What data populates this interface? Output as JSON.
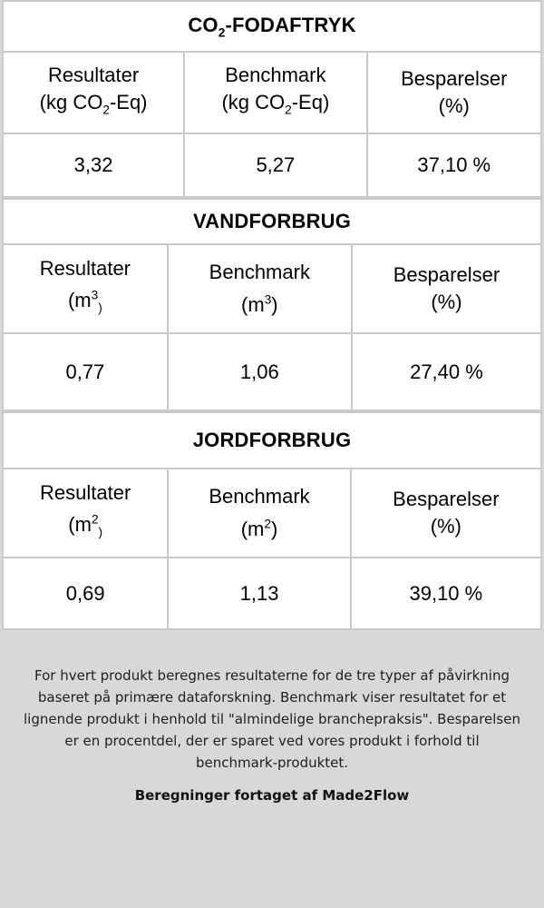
{
  "colors": {
    "page_background": "#d8d8d8",
    "table_background": "#ffffff",
    "table_border": "#c9c9c9"
  },
  "tables": [
    {
      "id": "co2-footprint",
      "title_segments": [
        {
          "t": "CO"
        },
        {
          "t": "2",
          "s": "sub"
        },
        {
          "t": "-FODAFTRYK"
        }
      ],
      "columns": [
        {
          "name": "Resultater",
          "unit_segments": [
            {
              "t": "(kg CO"
            },
            {
              "t": "2",
              "s": "sub"
            },
            {
              "t": "-Eq)"
            }
          ]
        },
        {
          "name": "Benchmark",
          "unit_segments": [
            {
              "t": "(kg CO"
            },
            {
              "t": "2",
              "s": "sub"
            },
            {
              "t": "-Eq)"
            }
          ]
        },
        {
          "name": "Besparelser",
          "unit_segments": [
            {
              "t": "(%)"
            }
          ]
        }
      ],
      "values": [
        "3,32",
        "5,27",
        "37,10 %"
      ]
    },
    {
      "id": "water-use",
      "title_segments": [
        {
          "t": "VANDFORBRUG"
        }
      ],
      "columns": [
        {
          "name": "Resultater",
          "unit_segments": [
            {
              "t": "(m"
            },
            {
              "t": "3",
              "s": "sup"
            },
            {
              "t": ")",
              "s": "sub"
            }
          ]
        },
        {
          "name": "Benchmark",
          "unit_segments": [
            {
              "t": "(m"
            },
            {
              "t": "3",
              "s": "sup"
            },
            {
              "t": ")"
            }
          ]
        },
        {
          "name": "Besparelser",
          "unit_segments": [
            {
              "t": "(%)"
            }
          ]
        }
      ],
      "values": [
        "0,77",
        "1,06",
        "27,40 %"
      ]
    },
    {
      "id": "land-use",
      "title_segments": [
        {
          "t": "JORDFORBRUG"
        }
      ],
      "columns": [
        {
          "name": "Resultater",
          "unit_segments": [
            {
              "t": "(m"
            },
            {
              "t": "2",
              "s": "sup"
            },
            {
              "t": ")",
              "s": "sub"
            }
          ]
        },
        {
          "name": "Benchmark",
          "unit_segments": [
            {
              "t": "(m"
            },
            {
              "t": "2",
              "s": "sup"
            },
            {
              "t": ")"
            }
          ]
        },
        {
          "name": "Besparelser",
          "unit_segments": [
            {
              "t": "(%)"
            }
          ]
        }
      ],
      "values": [
        "0,69",
        "1,13",
        "39,10 %"
      ]
    }
  ],
  "footer": {
    "description": "For hvert produkt beregnes resultaterne for de tre typer af påvirkning baseret på primære dataforskning. Benchmark viser resultatet for et lignende produkt i henhold til \"almindelige branchepraksis\". Besparelsen er en procentdel, der er sparet ved vores produkt i forhold til benchmark-produktet.",
    "credit": "Beregninger fortaget af Made2Flow"
  }
}
